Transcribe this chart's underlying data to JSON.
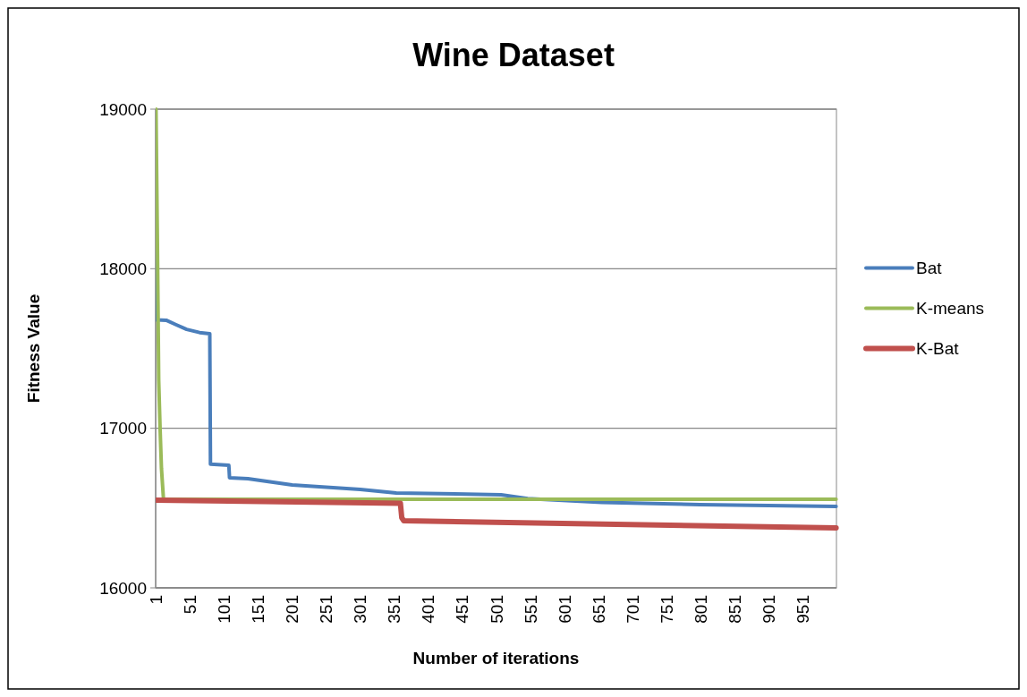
{
  "chart_data": {
    "type": "line",
    "title": "Wine Dataset",
    "xlabel": "Number of iterations",
    "ylabel": "Fitness Value",
    "xlim": [
      0.5,
      1000.5
    ],
    "xticks": [
      1,
      51,
      101,
      151,
      201,
      251,
      301,
      351,
      401,
      451,
      501,
      551,
      601,
      651,
      701,
      751,
      801,
      851,
      901,
      951
    ],
    "ylim": [
      16000,
      19000
    ],
    "yticks": [
      16000,
      17000,
      18000,
      19000
    ],
    "grid": "y",
    "legend": "right",
    "marker": "none",
    "series": [
      {
        "name": "Bat",
        "color": "#4a7ebb",
        "x": [
          1,
          2,
          16,
          30,
          46,
          65,
          80,
          81,
          108,
          109,
          136,
          201,
          301,
          354,
          420,
          508,
          547,
          656,
          800,
          1000
        ],
        "values": [
          18265,
          17680,
          17677,
          17650,
          17620,
          17600,
          17593,
          16775,
          16768,
          16690,
          16684,
          16645,
          16617,
          16595,
          16590,
          16583,
          16560,
          16535,
          16522,
          16510
        ]
      },
      {
        "name": "K-means",
        "color": "#9bbb59",
        "x": [
          1,
          3,
          5,
          7,
          9,
          12,
          1000
        ],
        "values": [
          19000,
          18200,
          17300,
          17000,
          16750,
          16555,
          16555
        ]
      },
      {
        "name": "K-Bat",
        "color": "#c0504d",
        "x": [
          1,
          360,
          362,
          365,
          1000
        ],
        "values": [
          16550,
          16530,
          16440,
          16420,
          16376
        ]
      }
    ]
  }
}
